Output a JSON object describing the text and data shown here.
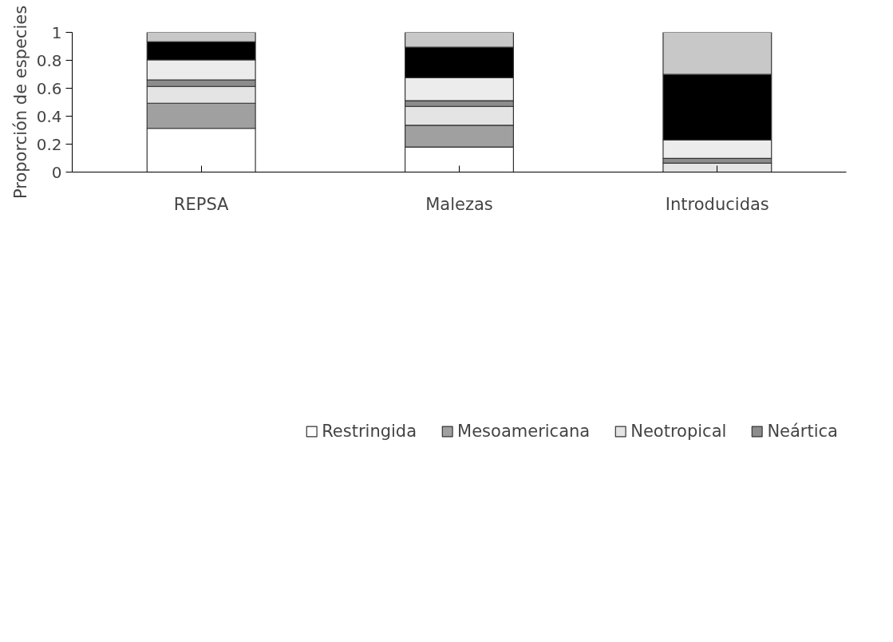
{
  "chart_data": {
    "type": "bar",
    "stacked": true,
    "ylabel": "Proporción de especies",
    "categories": [
      "REPSA",
      "Malezas",
      "Introducidas"
    ],
    "series": [
      {
        "name": "Restringida",
        "color": "#ffffff",
        "values": [
          0.313,
          0.179,
          0
        ]
      },
      {
        "name": "Mesoamericana",
        "color": "#a0a0a0",
        "values": [
          0.18,
          0.156,
          0
        ]
      },
      {
        "name": "Neotropical",
        "color": "#e4e4e4",
        "values": [
          0.12,
          0.135,
          0.064
        ]
      },
      {
        "name": "Neártica",
        "color": "#8c8c8c",
        "values": [
          0.047,
          0.041,
          0.034
        ]
      },
      {
        "color": "#ececec",
        "values": [
          0.143,
          0.164,
          0.132
        ]
      },
      {
        "color": "#000000",
        "values": [
          0.129,
          0.219,
          0.469
        ]
      },
      {
        "color": "#c8c8c8",
        "values": [
          0.068,
          0.106,
          0.301
        ]
      }
    ],
    "ylim": [
      0,
      1
    ],
    "yticks": [
      0,
      0.2,
      0.4,
      0.6,
      0.8,
      1
    ],
    "grid": false,
    "legend": "bottom"
  }
}
